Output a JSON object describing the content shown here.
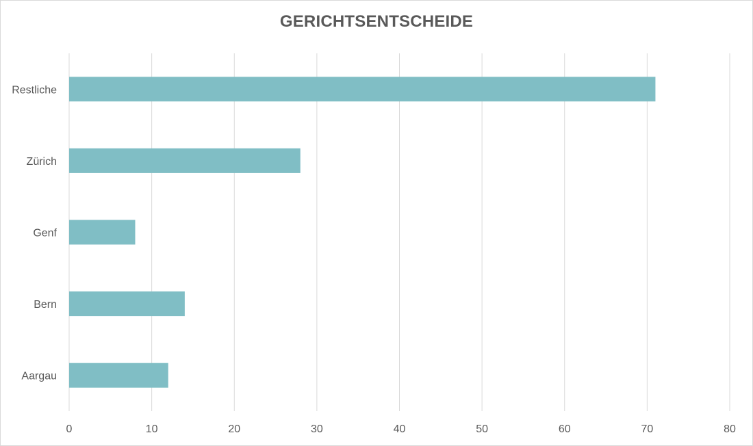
{
  "chart_data": {
    "type": "bar",
    "orientation": "horizontal",
    "title": "GERICHTSENTSCHEIDE",
    "xlabel": "",
    "ylabel": "",
    "categories": [
      "Restliche",
      "Zürich",
      "Genf",
      "Bern",
      "Aargau"
    ],
    "values": [
      71,
      28,
      8,
      14,
      12
    ],
    "xlim": [
      0,
      80
    ],
    "xticks": [
      "0",
      "10",
      "20",
      "30",
      "40",
      "50",
      "60",
      "70",
      "80"
    ],
    "grid": "vertical",
    "legend": "none",
    "colors": {
      "bar": "#80bec5",
      "grid": "#d9d9d9",
      "text": "#595959"
    }
  }
}
